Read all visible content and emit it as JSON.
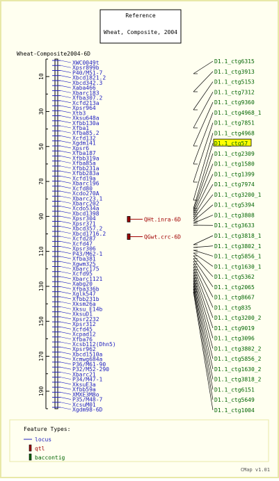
{
  "header": {
    "title": "Reference",
    "subtitle": "Wheat, Composite, 2004"
  },
  "map_label": "Wheat-Composite2004-6D",
  "scale": {
    "ticks": [
      "10",
      "30",
      "50",
      "70",
      "90",
      "110",
      "130",
      "150",
      "170",
      "190"
    ],
    "min": 0,
    "max": 200
  },
  "colors": {
    "background": "#fffff0",
    "frame": "#e8e8a8",
    "locus": "#2020c0",
    "qtl": "#a00000",
    "contig": "#006400",
    "highlight": "#ffff00"
  },
  "markers": [
    "XWC0049t",
    "Xpsr899b",
    "P40/M51-7",
    "Xbcd1821.2",
    "Xbcd342.3",
    "Xaba466",
    "Xbarc183",
    "Xfba307.2",
    "Xcfd213a",
    "Xpsr964",
    "Xtb3",
    "Xksu648a",
    "Xfbb130a",
    "Xfba1",
    "Xfba85.2",
    "Xcfd132",
    "Xgdm141",
    "Xpsr6",
    "Xfba187",
    "Xfbb319a",
    "Xfba85a",
    "Xfbb231a",
    "Xfbb283a",
    "Xcfd19a",
    "Xbarc196",
    "Xcfd80",
    "Xcdo270A",
    "Xbarc23.1",
    "Xbarc202",
    "Xcdo534a",
    "Xbcd1398",
    "Xpsr304",
    "Xpsr371",
    "Xbcd357.2",
    "Xbcd1716.2",
    "Xcfd287",
    "Xcfd47",
    "Xpsr306",
    "P43/M62-1",
    "Xfba381",
    "Xgwm325",
    "Xbarc175",
    "Xcfd95",
    "Xbarc1121",
    "Xabg20",
    "Xfba336b",
    "Xglk547",
    "Xfbb231b",
    "Xksm26a",
    "Xksu E14b",
    "XksuD1",
    "Xpsr2232",
    "Xpsr312",
    "Xcfd45",
    "Xcpad12",
    "Xfba76",
    "Xcsb112(Dhn5)",
    "Xpsr962",
    "Xbcd1510a",
    "Xcmwg684a",
    "P36/M61-90",
    "P32/M52-290",
    "Xbarc21",
    "P34/M47-1",
    "XksuE3a",
    "Xfbb59a",
    "XMXE3M8o",
    "P35/M48-7",
    "XcsuM01",
    "Xgdm98-6D"
  ],
  "qtl": [
    {
      "label": "QHt.inra-6D",
      "start": 90,
      "end": 93
    },
    {
      "label": "QGwt.crc-6D",
      "start": 100,
      "end": 103
    }
  ],
  "contigs": [
    {
      "label": "D1.1_ctg6315",
      "highlighted": false
    },
    {
      "label": "D1.1_ctg3913",
      "highlighted": false
    },
    {
      "label": "D1.1_ctg5153",
      "highlighted": false
    },
    {
      "label": "D1.1_ctg7312",
      "highlighted": false
    },
    {
      "label": "D1.1_ctg9360",
      "highlighted": false
    },
    {
      "label": "D1.1_ctg4968_1",
      "highlighted": false
    },
    {
      "label": "D1.1_ctg7851",
      "highlighted": false
    },
    {
      "label": "D1.1_ctg4968",
      "highlighted": false
    },
    {
      "label": "D1.1_ctg57",
      "highlighted": true
    },
    {
      "label": "D1.1_ctg2309",
      "highlighted": false
    },
    {
      "label": "D1.1_ctg1580",
      "highlighted": false
    },
    {
      "label": "D1.1_ctg1399",
      "highlighted": false
    },
    {
      "label": "D1.1_ctg7974",
      "highlighted": false
    },
    {
      "label": "D1.1_ctg3200_1",
      "highlighted": false
    },
    {
      "label": "D1.1_ctg5394",
      "highlighted": false
    },
    {
      "label": "D1.1_ctg3808",
      "highlighted": false
    },
    {
      "label": "D1.1_ctg3633",
      "highlighted": false
    },
    {
      "label": "D1.1_ctg3818_1",
      "highlighted": false
    },
    {
      "label": "D1.1_ctg3802_1",
      "highlighted": false
    },
    {
      "label": "D1.1_ctg5856_1",
      "highlighted": false
    },
    {
      "label": "D1.1_ctg1630_1",
      "highlighted": false
    },
    {
      "label": "D1.1_ctg5362",
      "highlighted": false
    },
    {
      "label": "D1.1_ctg2065",
      "highlighted": false
    },
    {
      "label": "D1.1_ctg8667",
      "highlighted": false
    },
    {
      "label": "D1.1_ctg835",
      "highlighted": false
    },
    {
      "label": "D1.1_ctg3200_2",
      "highlighted": false
    },
    {
      "label": "D1.1_ctg9019",
      "highlighted": false
    },
    {
      "label": "D1.1_ctg3096",
      "highlighted": false
    },
    {
      "label": "D1.1_ctg3802_2",
      "highlighted": false
    },
    {
      "label": "D1.1_ctg5856_2",
      "highlighted": false
    },
    {
      "label": "D1.1_ctg1630_2",
      "highlighted": false
    },
    {
      "label": "D1.1_ctg3818_2",
      "highlighted": false
    },
    {
      "label": "D1.1_ctg6151",
      "highlighted": false
    },
    {
      "label": "D1.1_ctg5649",
      "highlighted": false
    },
    {
      "label": "D1.1_ctg1004",
      "highlighted": false
    }
  ],
  "legend": {
    "title": "Feature Types:",
    "items": [
      {
        "label": "locus",
        "type": "locus"
      },
      {
        "label": "qtl",
        "type": "qtl"
      },
      {
        "label": "baccontig",
        "type": "contig"
      }
    ]
  },
  "footer": {
    "version": "CMap v1.01"
  }
}
